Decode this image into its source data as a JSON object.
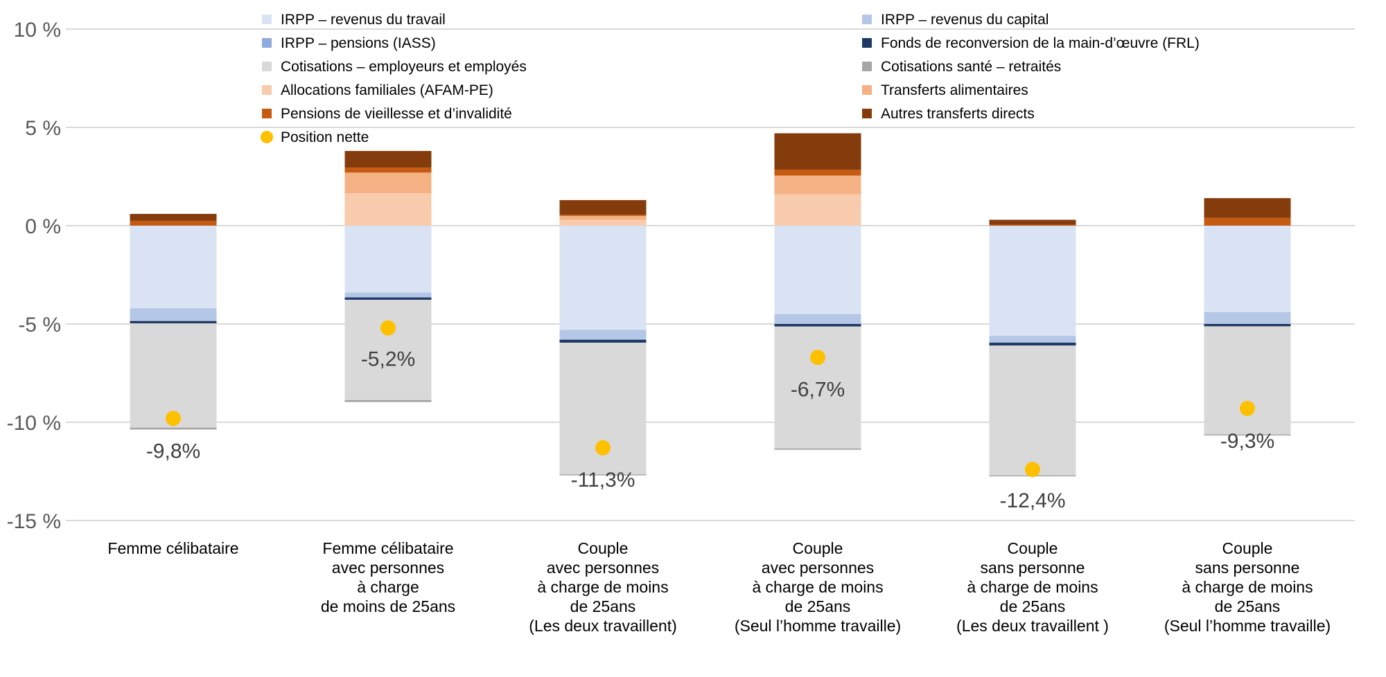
{
  "chart_data": {
    "type": "stacked_bar",
    "title": "",
    "xlabel": "",
    "ylabel": "",
    "ylim": [
      -15,
      10
    ],
    "yticks": [
      "10 %",
      "5 %",
      "0 %",
      "-5 %",
      "-10 %",
      "-15 %"
    ],
    "yticks_values": [
      10,
      5,
      0,
      -5,
      -10,
      -15
    ],
    "grid": true,
    "categories": [
      "Femme célibataire",
      "Femme célibataire\navec personnes\nà charge\nde moins de 25ans",
      "Couple\navec personnes\nà charge de moins\nde 25ans\n(Les deux travaillent)",
      "Couple\navec personnes\nà charge de moins\nde 25ans\n(Seul l’homme travaille)",
      "Couple\nsans personne\nà charge de moins\nde 25ans\n(Les deux travaillent )",
      "Couple\nsans personne\nà charge de moins\nde 25ans\n(Seul l’homme travaille)"
    ],
    "series": [
      {
        "name": "IRPP – revenus du travail",
        "color": "#dae3f3",
        "values": [
          -4.2,
          -3.4,
          -5.3,
          -4.5,
          -5.6,
          -4.4
        ]
      },
      {
        "name": "IRPP – revenus du capital",
        "color": "#b4c7e7",
        "values": [
          -0.65,
          -0.25,
          -0.5,
          -0.5,
          -0.35,
          -0.6
        ]
      },
      {
        "name": "IRPP – pensions (IASS)",
        "color": "#8faadc",
        "values": [
          0,
          0,
          0,
          0,
          0,
          0
        ]
      },
      {
        "name": "Fonds de reconversion de la main-d’œuvre (FRL)",
        "color": "#1f3864",
        "values": [
          -0.12,
          -0.12,
          -0.15,
          -0.13,
          -0.15,
          -0.12
        ]
      },
      {
        "name": "Cotisations – employeurs et employés",
        "color": "#d9d9d9",
        "values": [
          -5.3,
          -5.1,
          -6.7,
          -6.2,
          -6.6,
          -5.5
        ]
      },
      {
        "name": "Cotisations santé – retraités",
        "color": "#a6a6a6",
        "values": [
          -0.1,
          -0.1,
          -0.05,
          -0.07,
          -0.05,
          -0.05
        ]
      },
      {
        "name": "Allocations familiales (AFAM-PE)",
        "color": "#f8cbad",
        "values": [
          0,
          1.65,
          0.3,
          1.6,
          0,
          0
        ]
      },
      {
        "name": "Transferts alimentaires",
        "color": "#f4b183",
        "values": [
          0,
          1.05,
          0.2,
          0.95,
          0,
          0
        ]
      },
      {
        "name": "Pensions de vieillesse et d’invalidité",
        "color": "#c55a11",
        "values": [
          0.25,
          0.25,
          0.05,
          0.3,
          0.05,
          0.4
        ]
      },
      {
        "name": "Autres transferts directs",
        "color": "#843c0c",
        "values": [
          0.35,
          0.85,
          0.75,
          1.85,
          0.25,
          1.0
        ]
      }
    ],
    "net_position": {
      "name": "Position nette",
      "color": "#ffc000",
      "values": [
        -9.8,
        -5.2,
        -11.3,
        -6.7,
        -12.4,
        -9.3
      ],
      "labels": [
        "-9,8%",
        "-5,2%",
        "-11,3%",
        "-6,7%",
        "-12,4%",
        "-9,3%"
      ]
    },
    "legend": {
      "position": "top",
      "columns": [
        [
          "IRPP – revenus du travail",
          "IRPP – pensions (IASS)",
          "Cotisations – employeurs et employés",
          "Allocations familiales (AFAM-PE)",
          "Pensions de vieillesse et d’invalidité",
          "Position nette"
        ],
        [
          "IRPP – revenus du capital",
          "Fonds de reconversion de la main-d’œuvre (FRL)",
          "Cotisations santé – retraités",
          "Transferts alimentaires",
          "Autres transferts directs"
        ]
      ]
    }
  }
}
